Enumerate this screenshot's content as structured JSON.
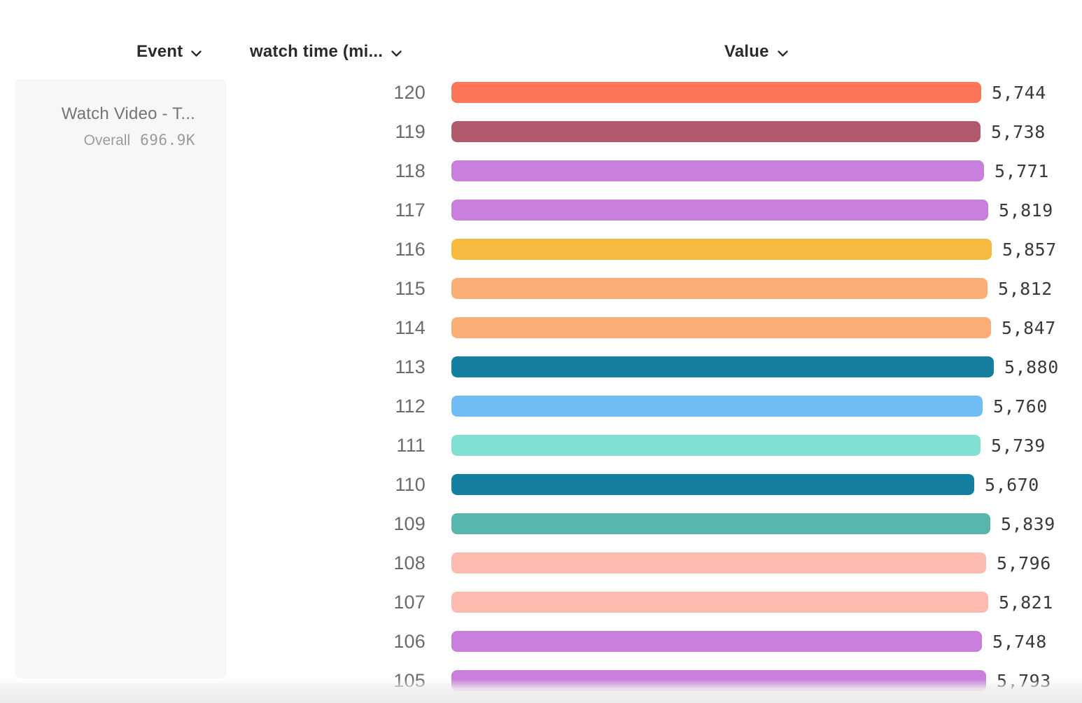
{
  "header": {
    "event_label": "Event",
    "watch_time_label": "watch time (mi...",
    "value_label": "Value"
  },
  "event_card": {
    "title": "Watch Video - T...",
    "overall_label": "Overall",
    "overall_value": "696.9K"
  },
  "chart_data": {
    "type": "bar",
    "orientation": "horizontal",
    "xlabel": "Value",
    "ylabel": "watch time (mi...",
    "xlim": [
      0,
      5880
    ],
    "categories": [
      "120",
      "119",
      "118",
      "117",
      "116",
      "115",
      "114",
      "113",
      "112",
      "111",
      "110",
      "109",
      "108",
      "107",
      "106",
      "105"
    ],
    "values": [
      5744,
      5738,
      5771,
      5819,
      5857,
      5812,
      5847,
      5880,
      5760,
      5739,
      5670,
      5839,
      5796,
      5821,
      5748,
      5793
    ],
    "value_labels": [
      "5,744",
      "5,738",
      "5,771",
      "5,819",
      "5,857",
      "5,812",
      "5,847",
      "5,880",
      "5,760",
      "5,739",
      "5,670",
      "5,839",
      "5,796",
      "5,821",
      "5,748",
      "5,793"
    ],
    "colors": [
      "#FC7557",
      "#B25A6D",
      "#C77FDB",
      "#C77FDB",
      "#F5BA3F",
      "#FAAD77",
      "#FAAD77",
      "#147F9F",
      "#70BCF5",
      "#80E0D2",
      "#147F9F",
      "#59B6AE",
      "#FDBBB0",
      "#FDBBB0",
      "#C77FDB",
      "#C77FDB"
    ],
    "grid": false,
    "legend": false
  },
  "colors": {
    "header_text": "#2b2b2b",
    "row_label_text": "#6b6b6b",
    "value_text": "#3a3a3a",
    "card_background": "#f7f7f7",
    "card_title_text": "#757575",
    "card_overall_text": "#9c9c9c"
  }
}
